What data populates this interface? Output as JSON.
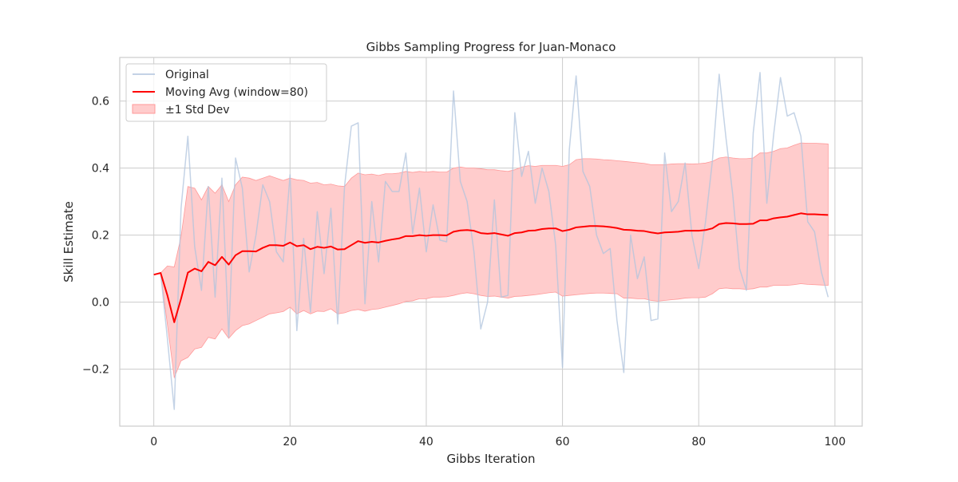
{
  "chart_data": {
    "type": "line",
    "title": "Gibbs Sampling Progress for Juan-Monaco",
    "xlabel": "Gibbs Iteration",
    "ylabel": "Skill Estimate",
    "xlim": [
      -5,
      104
    ],
    "ylim": [
      -0.37,
      0.73
    ],
    "xticks": [
      0,
      20,
      40,
      60,
      80,
      100
    ],
    "xtick_labels": [
      "0",
      "20",
      "40",
      "60",
      "80",
      "100"
    ],
    "yticks": [
      -0.2,
      0.0,
      0.2,
      0.4,
      0.6
    ],
    "ytick_labels": [
      "−0.2",
      "0.0",
      "0.2",
      "0.4",
      "0.6"
    ],
    "grid": true,
    "legend_position": "top-left",
    "legend": [
      "Original",
      "Moving Avg (window=80)",
      "±1 Std Dev"
    ],
    "colors": {
      "original": "#b0c4de",
      "moving_avg": "#ff0000",
      "std_band": "#ffcccc",
      "std_band_edge": "#ff9999",
      "grid": "#cccccc",
      "spine": "#cccccc"
    },
    "x": [
      0,
      1,
      2,
      3,
      4,
      5,
      6,
      7,
      8,
      9,
      10,
      11,
      12,
      13,
      14,
      15,
      16,
      17,
      18,
      19,
      20,
      21,
      22,
      23,
      24,
      25,
      26,
      27,
      28,
      29,
      30,
      31,
      32,
      33,
      34,
      35,
      36,
      37,
      38,
      39,
      40,
      41,
      42,
      43,
      44,
      45,
      46,
      47,
      48,
      49,
      50,
      51,
      52,
      53,
      54,
      55,
      56,
      57,
      58,
      59,
      60,
      61,
      62,
      63,
      64,
      65,
      66,
      67,
      68,
      69,
      70,
      71,
      72,
      73,
      74,
      75,
      76,
      77,
      78,
      79,
      80,
      81,
      82,
      83,
      84,
      85,
      86,
      87,
      88,
      89,
      90,
      91,
      92,
      93,
      94,
      95,
      96,
      97,
      98,
      99
    ],
    "series": [
      {
        "name": "Original",
        "values": [
          0.082,
          0.088,
          -0.11,
          -0.32,
          0.28,
          0.495,
          0.165,
          0.035,
          0.345,
          0.015,
          0.37,
          -0.105,
          0.43,
          0.34,
          0.09,
          0.2,
          0.35,
          0.3,
          0.15,
          0.12,
          0.38,
          -0.085,
          0.19,
          -0.03,
          0.27,
          0.085,
          0.28,
          -0.065,
          0.345,
          0.525,
          0.535,
          -0.005,
          0.3,
          0.12,
          0.36,
          0.33,
          0.33,
          0.445,
          0.205,
          0.34,
          0.15,
          0.29,
          0.185,
          0.18,
          0.63,
          0.36,
          0.3,
          0.15,
          -0.08,
          0.0,
          0.305,
          0.015,
          0.02,
          0.565,
          0.375,
          0.45,
          0.295,
          0.4,
          0.33,
          0.17,
          -0.195,
          0.455,
          0.675,
          0.39,
          0.345,
          0.2,
          0.145,
          0.16,
          -0.055,
          -0.21,
          0.2,
          0.07,
          0.135,
          -0.055,
          -0.05,
          0.445,
          0.27,
          0.3,
          0.415,
          0.2,
          0.1,
          0.24,
          0.42,
          0.68,
          0.49,
          0.32,
          0.1,
          0.035,
          0.505,
          0.685,
          0.295,
          0.5,
          0.67,
          0.555,
          0.565,
          0.495,
          0.24,
          0.21,
          0.09,
          0.015
        ]
      },
      {
        "name": "Moving Avg (window=80)",
        "values": [
          0.082,
          0.087,
          0.02,
          -0.06,
          0.01,
          0.088,
          0.1,
          0.092,
          0.12,
          0.11,
          0.135,
          0.112,
          0.14,
          0.152,
          0.152,
          0.151,
          0.162,
          0.17,
          0.17,
          0.168,
          0.178,
          0.167,
          0.17,
          0.158,
          0.165,
          0.162,
          0.166,
          0.157,
          0.158,
          0.17,
          0.182,
          0.177,
          0.18,
          0.178,
          0.183,
          0.187,
          0.19,
          0.197,
          0.197,
          0.2,
          0.198,
          0.2,
          0.2,
          0.199,
          0.21,
          0.214,
          0.215,
          0.213,
          0.206,
          0.204,
          0.206,
          0.202,
          0.198,
          0.206,
          0.208,
          0.213,
          0.214,
          0.218,
          0.22,
          0.22,
          0.212,
          0.216,
          0.223,
          0.225,
          0.227,
          0.227,
          0.226,
          0.224,
          0.221,
          0.216,
          0.215,
          0.213,
          0.212,
          0.208,
          0.205,
          0.208,
          0.209,
          0.21,
          0.213,
          0.213,
          0.213,
          0.215,
          0.22,
          0.233,
          0.236,
          0.235,
          0.233,
          0.233,
          0.234,
          0.244,
          0.244,
          0.25,
          0.253,
          0.255,
          0.26,
          0.265,
          0.262,
          0.262,
          0.261,
          0.26
        ]
      }
    ],
    "std_band": {
      "name": "±1 Std Dev",
      "upper": [
        0.082,
        0.087,
        0.108,
        0.105,
        0.195,
        0.345,
        0.34,
        0.305,
        0.345,
        0.325,
        0.35,
        0.3,
        0.35,
        0.373,
        0.37,
        0.363,
        0.37,
        0.377,
        0.37,
        0.363,
        0.37,
        0.365,
        0.363,
        0.355,
        0.357,
        0.35,
        0.352,
        0.347,
        0.345,
        0.37,
        0.385,
        0.38,
        0.382,
        0.378,
        0.383,
        0.383,
        0.385,
        0.39,
        0.387,
        0.39,
        0.388,
        0.39,
        0.388,
        0.388,
        0.4,
        0.403,
        0.4,
        0.4,
        0.398,
        0.395,
        0.395,
        0.392,
        0.39,
        0.395,
        0.403,
        0.407,
        0.405,
        0.408,
        0.408,
        0.408,
        0.405,
        0.41,
        0.425,
        0.428,
        0.428,
        0.427,
        0.425,
        0.424,
        0.422,
        0.42,
        0.418,
        0.416,
        0.414,
        0.41,
        0.41,
        0.41,
        0.412,
        0.413,
        0.413,
        0.412,
        0.413,
        0.415,
        0.42,
        0.43,
        0.433,
        0.43,
        0.428,
        0.428,
        0.43,
        0.445,
        0.445,
        0.45,
        0.458,
        0.46,
        0.468,
        0.475,
        0.474,
        0.474,
        0.473,
        0.472
      ],
      "lower": [
        0.082,
        0.087,
        -0.068,
        -0.225,
        -0.175,
        -0.165,
        -0.14,
        -0.135,
        -0.105,
        -0.11,
        -0.08,
        -0.108,
        -0.085,
        -0.07,
        -0.065,
        -0.055,
        -0.045,
        -0.035,
        -0.032,
        -0.028,
        -0.015,
        -0.035,
        -0.025,
        -0.035,
        -0.027,
        -0.028,
        -0.02,
        -0.035,
        -0.032,
        -0.025,
        -0.022,
        -0.027,
        -0.022,
        -0.02,
        -0.015,
        -0.01,
        -0.005,
        0.002,
        0.004,
        0.01,
        0.01,
        0.015,
        0.015,
        0.016,
        0.02,
        0.025,
        0.028,
        0.025,
        0.02,
        0.017,
        0.018,
        0.015,
        0.012,
        0.017,
        0.018,
        0.02,
        0.022,
        0.025,
        0.028,
        0.03,
        0.018,
        0.02,
        0.022,
        0.024,
        0.026,
        0.027,
        0.027,
        0.026,
        0.025,
        0.012,
        0.012,
        0.01,
        0.01,
        0.005,
        0.003,
        0.005,
        0.007,
        0.009,
        0.012,
        0.013,
        0.013,
        0.015,
        0.025,
        0.04,
        0.042,
        0.04,
        0.04,
        0.038,
        0.04,
        0.045,
        0.045,
        0.05,
        0.05,
        0.05,
        0.052,
        0.055,
        0.053,
        0.052,
        0.051,
        0.05
      ]
    }
  }
}
